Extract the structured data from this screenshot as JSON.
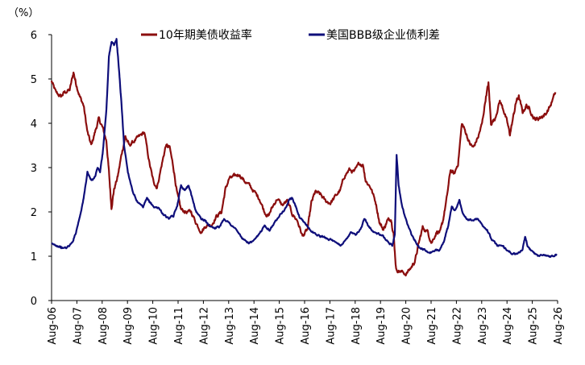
{
  "chart_data": {
    "type": "line",
    "unit": "（%）",
    "ylim": [
      0,
      6
    ],
    "yticks": [
      0,
      1,
      2,
      3,
      4,
      5,
      6
    ],
    "xlim": [
      2006.583,
      2026.583
    ],
    "xticks": [
      "Aug-06",
      "Aug-07",
      "Aug-08",
      "Aug-09",
      "Aug-10",
      "Aug-11",
      "Aug-12",
      "Aug-13",
      "Aug-14",
      "Aug-15",
      "Aug-16",
      "Aug-17",
      "Aug-18",
      "Aug-19",
      "Aug-20",
      "Aug-21",
      "Aug-22",
      "Aug-23",
      "Aug-24",
      "Aug-25",
      "Aug-26"
    ],
    "grid": false,
    "legend": "top",
    "series": [
      {
        "name": "10年期美债收益率",
        "color": "#8B0E0E",
        "points": [
          [
            2006.58,
            4.95
          ],
          [
            2006.75,
            4.7
          ],
          [
            2006.95,
            4.6
          ],
          [
            2007.1,
            4.7
          ],
          [
            2007.3,
            4.75
          ],
          [
            2007.45,
            5.15
          ],
          [
            2007.55,
            4.9
          ],
          [
            2007.7,
            4.6
          ],
          [
            2007.85,
            4.4
          ],
          [
            2008.0,
            3.8
          ],
          [
            2008.15,
            3.5
          ],
          [
            2008.3,
            3.8
          ],
          [
            2008.45,
            4.1
          ],
          [
            2008.6,
            3.9
          ],
          [
            2008.75,
            3.6
          ],
          [
            2008.85,
            2.9
          ],
          [
            2008.95,
            2.1
          ],
          [
            2009.05,
            2.5
          ],
          [
            2009.2,
            2.8
          ],
          [
            2009.35,
            3.3
          ],
          [
            2009.5,
            3.7
          ],
          [
            2009.65,
            3.5
          ],
          [
            2009.85,
            3.6
          ],
          [
            2010.05,
            3.7
          ],
          [
            2010.25,
            3.8
          ],
          [
            2010.45,
            3.1
          ],
          [
            2010.6,
            2.7
          ],
          [
            2010.75,
            2.55
          ],
          [
            2010.95,
            3.1
          ],
          [
            2011.1,
            3.5
          ],
          [
            2011.25,
            3.45
          ],
          [
            2011.4,
            3.0
          ],
          [
            2011.55,
            2.4
          ],
          [
            2011.7,
            2.05
          ],
          [
            2011.9,
            2.0
          ],
          [
            2012.1,
            2.0
          ],
          [
            2012.3,
            1.75
          ],
          [
            2012.5,
            1.55
          ],
          [
            2012.7,
            1.7
          ],
          [
            2012.9,
            1.7
          ],
          [
            2013.1,
            1.9
          ],
          [
            2013.3,
            2.0
          ],
          [
            2013.45,
            2.5
          ],
          [
            2013.6,
            2.75
          ],
          [
            2013.8,
            2.8
          ],
          [
            2014.0,
            2.85
          ],
          [
            2014.2,
            2.7
          ],
          [
            2014.4,
            2.6
          ],
          [
            2014.6,
            2.45
          ],
          [
            2014.8,
            2.3
          ],
          [
            2015.0,
            2.0
          ],
          [
            2015.15,
            1.9
          ],
          [
            2015.3,
            2.1
          ],
          [
            2015.5,
            2.3
          ],
          [
            2015.7,
            2.15
          ],
          [
            2015.9,
            2.25
          ],
          [
            2016.1,
            1.95
          ],
          [
            2016.3,
            1.8
          ],
          [
            2016.5,
            1.45
          ],
          [
            2016.7,
            1.6
          ],
          [
            2016.85,
            2.2
          ],
          [
            2017.0,
            2.45
          ],
          [
            2017.2,
            2.4
          ],
          [
            2017.4,
            2.25
          ],
          [
            2017.6,
            2.2
          ],
          [
            2017.8,
            2.35
          ],
          [
            2018.0,
            2.5
          ],
          [
            2018.15,
            2.8
          ],
          [
            2018.35,
            2.95
          ],
          [
            2018.55,
            2.9
          ],
          [
            2018.75,
            3.1
          ],
          [
            2018.9,
            3.05
          ],
          [
            2019.0,
            2.7
          ],
          [
            2019.2,
            2.55
          ],
          [
            2019.4,
            2.2
          ],
          [
            2019.55,
            1.75
          ],
          [
            2019.7,
            1.6
          ],
          [
            2019.85,
            1.8
          ],
          [
            2020.0,
            1.85
          ],
          [
            2020.1,
            1.5
          ],
          [
            2020.2,
            0.7
          ],
          [
            2020.4,
            0.65
          ],
          [
            2020.6,
            0.6
          ],
          [
            2020.8,
            0.75
          ],
          [
            2020.95,
            0.9
          ],
          [
            2021.1,
            1.3
          ],
          [
            2021.25,
            1.65
          ],
          [
            2021.45,
            1.55
          ],
          [
            2021.6,
            1.3
          ],
          [
            2021.8,
            1.55
          ],
          [
            2021.95,
            1.55
          ],
          [
            2022.05,
            1.8
          ],
          [
            2022.2,
            2.3
          ],
          [
            2022.35,
            2.95
          ],
          [
            2022.5,
            2.85
          ],
          [
            2022.65,
            3.1
          ],
          [
            2022.8,
            4.0
          ],
          [
            2022.95,
            3.8
          ],
          [
            2023.1,
            3.55
          ],
          [
            2023.25,
            3.45
          ],
          [
            2023.45,
            3.7
          ],
          [
            2023.6,
            4.0
          ],
          [
            2023.75,
            4.6
          ],
          [
            2023.85,
            4.9
          ],
          [
            2023.95,
            4.0
          ],
          [
            2024.1,
            4.1
          ],
          [
            2024.3,
            4.5
          ],
          [
            2024.45,
            4.3
          ],
          [
            2024.6,
            4.0
          ],
          [
            2024.7,
            3.75
          ],
          [
            2024.85,
            4.2
          ],
          [
            2024.95,
            4.5
          ],
          [
            2025.05,
            4.6
          ],
          [
            2025.2,
            4.25
          ],
          [
            2025.35,
            4.4
          ],
          [
            2025.5,
            4.3
          ],
          [
            2025.65,
            4.1
          ],
          [
            2025.8,
            4.1
          ],
          [
            2025.95,
            4.15
          ],
          [
            2026.1,
            4.2
          ],
          [
            2026.3,
            4.4
          ],
          [
            2026.5,
            4.7
          ]
        ]
      },
      {
        "name": "美国BBB级企业债利差",
        "color": "#0E0E7A",
        "points": [
          [
            2006.58,
            1.27
          ],
          [
            2006.75,
            1.25
          ],
          [
            2006.9,
            1.22
          ],
          [
            2007.0,
            1.18
          ],
          [
            2007.2,
            1.2
          ],
          [
            2007.4,
            1.3
          ],
          [
            2007.55,
            1.55
          ],
          [
            2007.7,
            1.9
          ],
          [
            2007.85,
            2.3
          ],
          [
            2008.0,
            2.9
          ],
          [
            2008.15,
            2.7
          ],
          [
            2008.3,
            2.8
          ],
          [
            2008.4,
            3.0
          ],
          [
            2008.5,
            2.9
          ],
          [
            2008.6,
            3.3
          ],
          [
            2008.75,
            4.3
          ],
          [
            2008.85,
            5.5
          ],
          [
            2008.95,
            5.85
          ],
          [
            2009.05,
            5.75
          ],
          [
            2009.15,
            5.9
          ],
          [
            2009.25,
            5.2
          ],
          [
            2009.35,
            4.4
          ],
          [
            2009.45,
            3.5
          ],
          [
            2009.6,
            2.9
          ],
          [
            2009.8,
            2.45
          ],
          [
            2010.0,
            2.2
          ],
          [
            2010.2,
            2.1
          ],
          [
            2010.35,
            2.3
          ],
          [
            2010.5,
            2.2
          ],
          [
            2010.65,
            2.1
          ],
          [
            2010.8,
            2.1
          ],
          [
            2011.0,
            1.95
          ],
          [
            2011.2,
            1.85
          ],
          [
            2011.4,
            1.9
          ],
          [
            2011.55,
            2.15
          ],
          [
            2011.7,
            2.6
          ],
          [
            2011.85,
            2.5
          ],
          [
            2012.0,
            2.6
          ],
          [
            2012.15,
            2.3
          ],
          [
            2012.3,
            2.0
          ],
          [
            2012.5,
            1.85
          ],
          [
            2012.65,
            1.8
          ],
          [
            2012.8,
            1.7
          ],
          [
            2013.0,
            1.65
          ],
          [
            2013.2,
            1.65
          ],
          [
            2013.4,
            1.85
          ],
          [
            2013.6,
            1.75
          ],
          [
            2013.8,
            1.65
          ],
          [
            2014.0,
            1.5
          ],
          [
            2014.2,
            1.35
          ],
          [
            2014.4,
            1.3
          ],
          [
            2014.6,
            1.35
          ],
          [
            2014.8,
            1.5
          ],
          [
            2015.0,
            1.7
          ],
          [
            2015.2,
            1.6
          ],
          [
            2015.4,
            1.75
          ],
          [
            2015.6,
            1.95
          ],
          [
            2015.8,
            2.05
          ],
          [
            2016.0,
            2.3
          ],
          [
            2016.1,
            2.3
          ],
          [
            2016.25,
            2.1
          ],
          [
            2016.4,
            1.85
          ],
          [
            2016.6,
            1.75
          ],
          [
            2016.8,
            1.6
          ],
          [
            2017.0,
            1.5
          ],
          [
            2017.2,
            1.45
          ],
          [
            2017.4,
            1.42
          ],
          [
            2017.6,
            1.38
          ],
          [
            2017.8,
            1.3
          ],
          [
            2018.0,
            1.25
          ],
          [
            2018.2,
            1.35
          ],
          [
            2018.4,
            1.55
          ],
          [
            2018.6,
            1.5
          ],
          [
            2018.8,
            1.6
          ],
          [
            2018.95,
            1.85
          ],
          [
            2019.1,
            1.7
          ],
          [
            2019.3,
            1.55
          ],
          [
            2019.5,
            1.5
          ],
          [
            2019.7,
            1.45
          ],
          [
            2019.9,
            1.3
          ],
          [
            2020.05,
            1.25
          ],
          [
            2020.15,
            1.5
          ],
          [
            2020.22,
            3.3
          ],
          [
            2020.3,
            2.6
          ],
          [
            2020.45,
            2.1
          ],
          [
            2020.6,
            1.8
          ],
          [
            2020.8,
            1.5
          ],
          [
            2020.95,
            1.35
          ],
          [
            2021.1,
            1.2
          ],
          [
            2021.3,
            1.15
          ],
          [
            2021.5,
            1.08
          ],
          [
            2021.7,
            1.1
          ],
          [
            2021.9,
            1.15
          ],
          [
            2022.1,
            1.35
          ],
          [
            2022.25,
            1.65
          ],
          [
            2022.4,
            2.1
          ],
          [
            2022.55,
            2.05
          ],
          [
            2022.7,
            2.25
          ],
          [
            2022.85,
            1.95
          ],
          [
            2023.0,
            1.85
          ],
          [
            2023.2,
            1.8
          ],
          [
            2023.4,
            1.85
          ],
          [
            2023.6,
            1.7
          ],
          [
            2023.8,
            1.6
          ],
          [
            2024.0,
            1.35
          ],
          [
            2024.2,
            1.25
          ],
          [
            2024.4,
            1.22
          ],
          [
            2024.6,
            1.15
          ],
          [
            2024.8,
            1.05
          ],
          [
            2025.0,
            1.05
          ],
          [
            2025.2,
            1.15
          ],
          [
            2025.3,
            1.45
          ],
          [
            2025.4,
            1.2
          ],
          [
            2025.6,
            1.1
          ],
          [
            2025.8,
            1.0
          ],
          [
            2026.0,
            1.05
          ],
          [
            2026.2,
            1.0
          ],
          [
            2026.4,
            1.0
          ],
          [
            2026.55,
            1.05
          ]
        ]
      }
    ]
  }
}
